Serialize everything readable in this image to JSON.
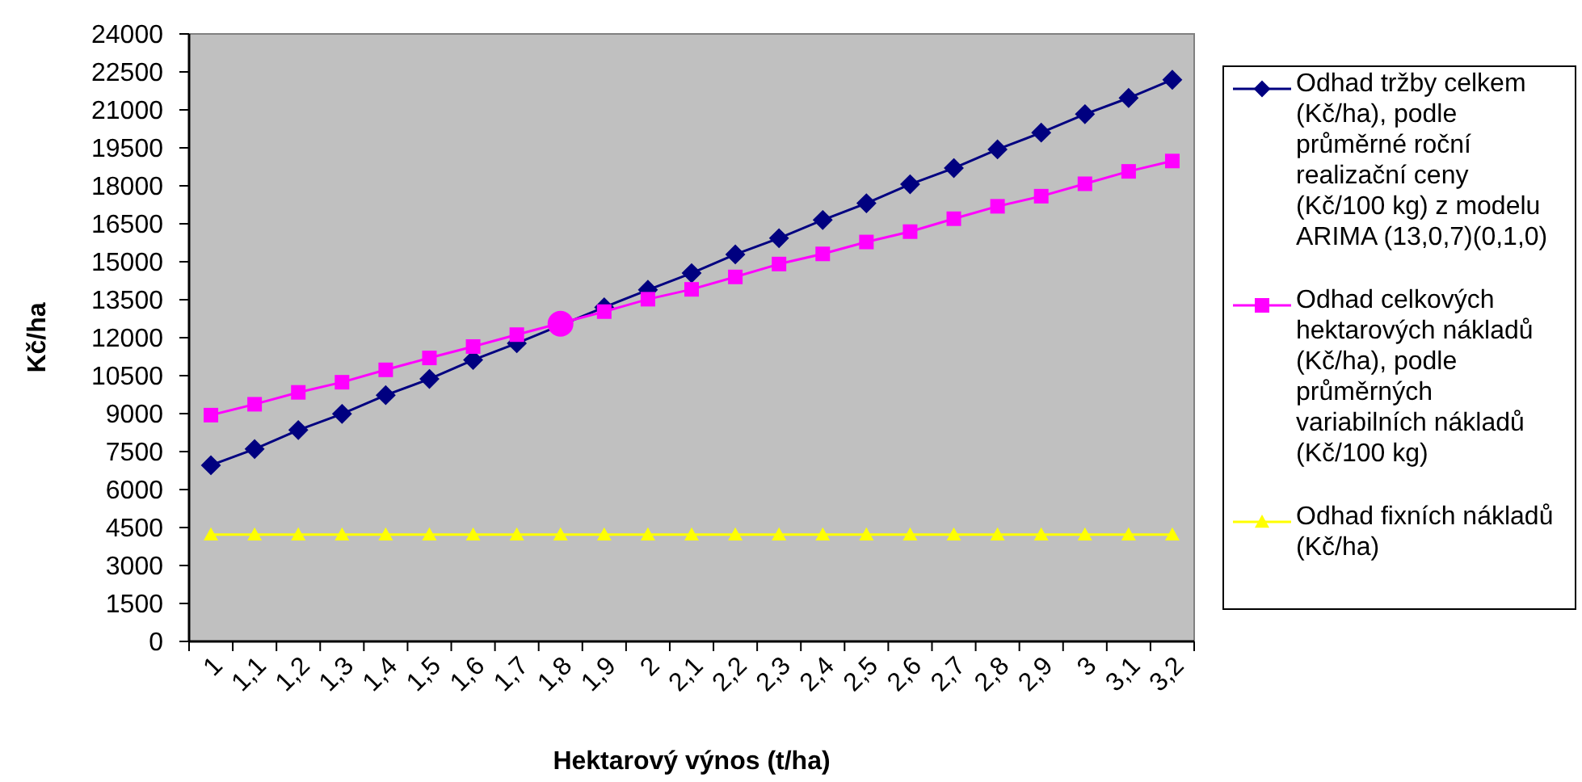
{
  "chart_data": {
    "type": "line",
    "xlabel": "Hektarový výnos (t/ha)",
    "ylabel": "Kč/ha",
    "categories": [
      "1",
      "1,1",
      "1,2",
      "1,3",
      "1,4",
      "1,5",
      "1,6",
      "1,7",
      "1,8",
      "1,9",
      "2",
      "2,1",
      "2,2",
      "2,3",
      "2,4",
      "2,5",
      "2,6",
      "2,7",
      "2,8",
      "2,9",
      "3",
      "3,1",
      "3,2"
    ],
    "ylim": [
      0,
      24000
    ],
    "yticks": [
      0,
      1500,
      3000,
      4500,
      6000,
      7500,
      9000,
      10500,
      12000,
      13500,
      15000,
      16500,
      18000,
      19500,
      21000,
      22500,
      24000
    ],
    "legend": "right",
    "series": [
      {
        "name": "Odhad tržby celkem (Kč/ha), podle průměrné roční realizační ceny (Kč/100 kg) z modelu ARIMA (13,0,7)(0,1,0)",
        "color": "#000080",
        "marker": "diamond",
        "values": [
          6960,
          7600,
          8350,
          8990,
          9730,
          10370,
          11120,
          11780,
          null,
          13200,
          13890,
          14550,
          15290,
          15930,
          16650,
          17310,
          18060,
          18700,
          19440,
          20100,
          20830,
          21470,
          22190
        ]
      },
      {
        "name": "Odhad celkových hektarových nákladů (Kč/ha), podle průměrných variabilních nákladů (Kč/100 kg)",
        "color": "#ff00ff",
        "marker": "square",
        "values": [
          8940,
          9370,
          9840,
          10240,
          10730,
          11200,
          11650,
          12120,
          null,
          13030,
          13520,
          13910,
          14400,
          14910,
          15310,
          15780,
          16190,
          16700,
          17190,
          17590,
          18080,
          18570,
          18980
        ]
      },
      {
        "name": "Odhad fixních nákladů (Kč/ha)",
        "color": "#ffff00",
        "marker": "triangle",
        "values": [
          4220,
          4220,
          4220,
          4220,
          4220,
          4220,
          4220,
          4220,
          4220,
          4220,
          4220,
          4220,
          4220,
          4220,
          4220,
          4220,
          4220,
          4220,
          4220,
          4220,
          4220,
          4220,
          4220
        ]
      },
      {
        "type": "scatter",
        "color": "#ff00ff",
        "marker": "circle",
        "x": [
          "1,8"
        ],
        "values": [
          12550
        ]
      }
    ]
  }
}
